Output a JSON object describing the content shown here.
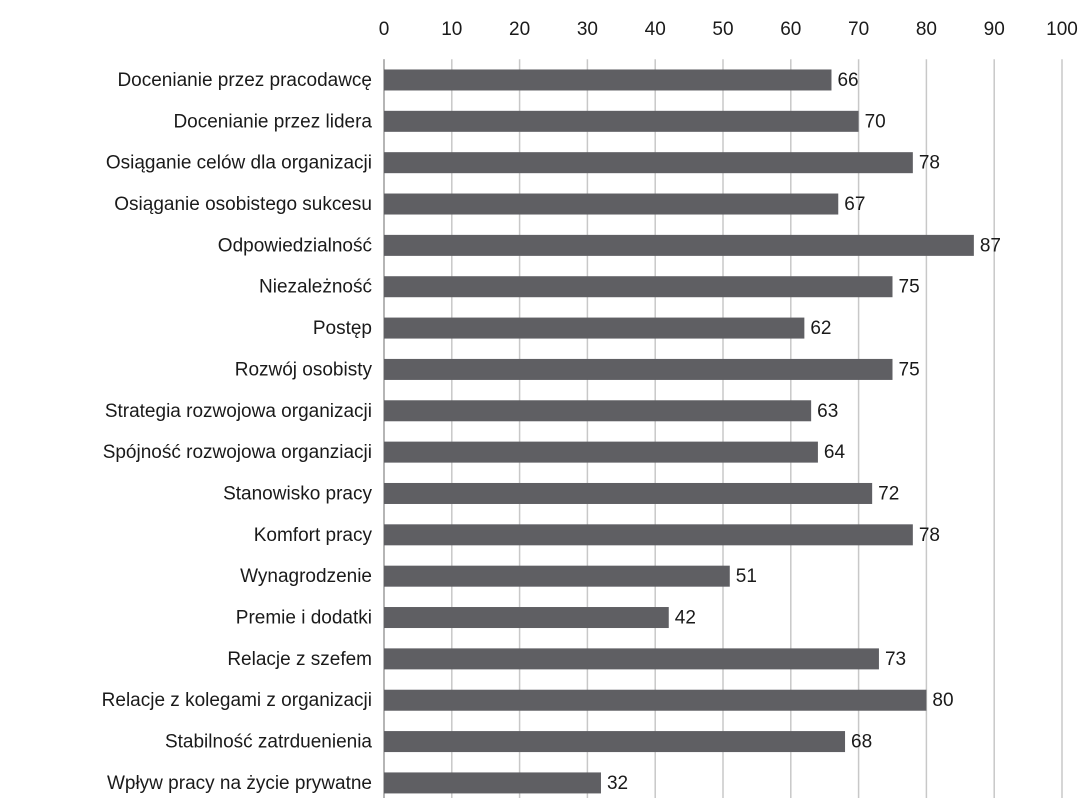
{
  "chart_data": {
    "type": "bar",
    "orientation": "horizontal",
    "categories": [
      "Docenianie przez pracodawcę",
      "Docenianie przez lidera",
      "Osiąganie celów dla organizacji",
      "Osiąganie osobistego sukcesu",
      "Odpowiedzialność",
      "Niezależność",
      "Postęp",
      "Rozwój osobisty",
      "Strategia rozwojowa organizacji",
      "Spójność rozwojowa organziacji",
      "Stanowisko pracy",
      "Komfort pracy",
      "Wynagrodzenie",
      "Premie i dodatki",
      "Relacje z szefem",
      "Relacje z kolegami z organizacji",
      "Stabilność zatrduenienia",
      "Wpływ pracy na życie prywatne"
    ],
    "values": [
      66,
      70,
      78,
      67,
      87,
      75,
      62,
      75,
      63,
      64,
      72,
      78,
      51,
      42,
      73,
      80,
      68,
      32
    ],
    "color": "#5f5f63",
    "xlim": [
      0,
      100
    ],
    "xticks": [
      0,
      10,
      20,
      30,
      40,
      50,
      60,
      70,
      80,
      90,
      100
    ],
    "grid": true
  }
}
